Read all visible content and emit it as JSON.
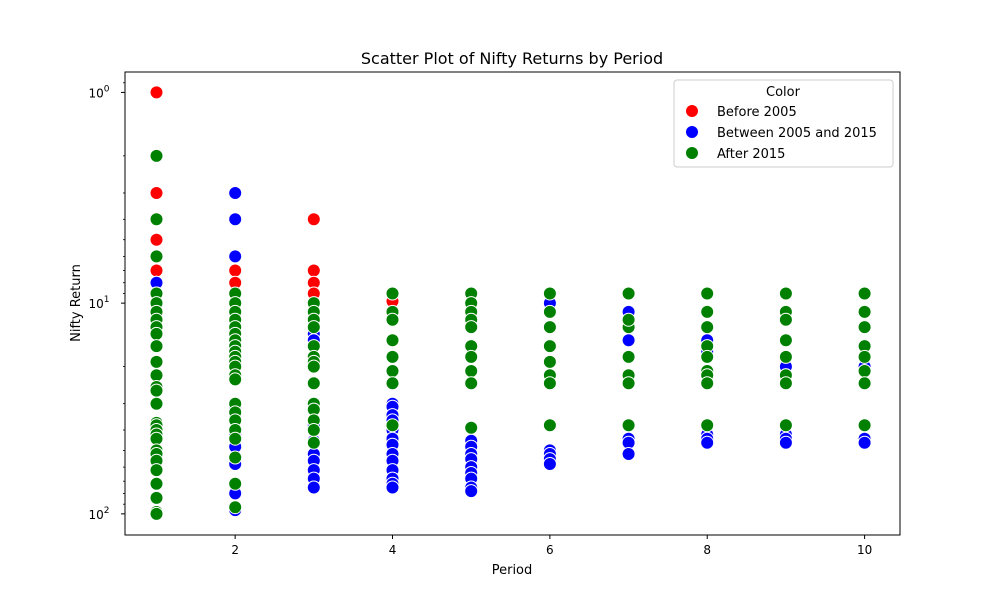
{
  "chart_data": {
    "type": "scatter",
    "title": "Scatter Plot of Nifty Returns by Period",
    "xlabel": "Period",
    "ylabel": "Nifty Return",
    "xlim": [
      0.6,
      10.45
    ],
    "ylim": [
      126,
      0.8
    ],
    "y_scale": "log",
    "y_inverted": true,
    "x_ticks": [
      2,
      4,
      6,
      8,
      10
    ],
    "y_ticks": [
      {
        "value": 1,
        "base": "10",
        "exp": "0"
      },
      {
        "value": 10,
        "base": "10",
        "exp": "1"
      },
      {
        "value": 100,
        "base": "10",
        "exp": "2"
      }
    ],
    "grid": false,
    "legend": {
      "title": "Color",
      "placement": "top-right"
    },
    "marker_edge_color": "#ffffff",
    "series": [
      {
        "name": "Before 2005",
        "color": "#ff0000",
        "points": [
          [
            1,
            1.0
          ],
          [
            1,
            3.0
          ],
          [
            1,
            5.0
          ],
          [
            1,
            7.0
          ],
          [
            1,
            8.0
          ],
          [
            2,
            7.0
          ],
          [
            2,
            8.0
          ],
          [
            3,
            4.0
          ],
          [
            3,
            7.0
          ],
          [
            3,
            8.0
          ],
          [
            3,
            9.0
          ],
          [
            4,
            9.8
          ]
        ]
      },
      {
        "name": "Between 2005 and 2015",
        "color": "#0000ff",
        "points": [
          [
            1,
            8.0
          ],
          [
            1,
            9.0
          ],
          [
            2,
            3.0
          ],
          [
            2,
            4.0
          ],
          [
            2,
            6.0
          ],
          [
            2,
            31
          ],
          [
            2,
            35
          ],
          [
            2,
            42
          ],
          [
            2,
            48
          ],
          [
            2,
            58
          ],
          [
            2,
            72
          ],
          [
            2,
            80
          ],
          [
            2,
            96
          ],
          [
            3,
            14
          ],
          [
            3,
            15
          ],
          [
            3,
            18
          ],
          [
            3,
            30
          ],
          [
            3,
            38
          ],
          [
            3,
            45
          ],
          [
            3,
            52
          ],
          [
            3,
            56
          ],
          [
            3,
            62
          ],
          [
            3,
            68
          ],
          [
            3,
            75
          ],
          [
            4,
            30
          ],
          [
            4,
            31
          ],
          [
            4,
            34
          ],
          [
            4,
            36
          ],
          [
            4,
            40
          ],
          [
            4,
            44
          ],
          [
            4,
            47
          ],
          [
            4,
            52
          ],
          [
            4,
            56
          ],
          [
            4,
            62
          ],
          [
            4,
            68
          ],
          [
            4,
            72
          ],
          [
            4,
            75
          ],
          [
            5,
            45
          ],
          [
            5,
            48
          ],
          [
            5,
            52
          ],
          [
            5,
            55
          ],
          [
            5,
            60
          ],
          [
            5,
            64
          ],
          [
            5,
            68
          ],
          [
            5,
            75
          ],
          [
            5,
            78
          ],
          [
            6,
            10
          ],
          [
            6,
            50
          ],
          [
            6,
            52
          ],
          [
            6,
            55
          ],
          [
            6,
            58
          ],
          [
            7,
            11
          ],
          [
            7,
            15
          ],
          [
            7,
            22
          ],
          [
            7,
            44
          ],
          [
            7,
            46
          ],
          [
            7,
            52
          ],
          [
            8,
            15
          ],
          [
            8,
            17
          ],
          [
            8,
            22
          ],
          [
            8,
            42
          ],
          [
            8,
            44
          ],
          [
            8,
            46
          ],
          [
            9,
            20
          ],
          [
            9,
            22
          ],
          [
            9,
            42
          ],
          [
            9,
            44
          ],
          [
            9,
            46
          ],
          [
            10,
            20
          ],
          [
            10,
            44
          ],
          [
            10,
            46
          ]
        ]
      },
      {
        "name": "After 2015",
        "color": "#008000",
        "points": [
          [
            1,
            2.0
          ],
          [
            1,
            4.0
          ],
          [
            1,
            6.0
          ],
          [
            1,
            9.0
          ],
          [
            1,
            10
          ],
          [
            1,
            11
          ],
          [
            1,
            12
          ],
          [
            1,
            13
          ],
          [
            1,
            14
          ],
          [
            1,
            16
          ],
          [
            1,
            19
          ],
          [
            1,
            22
          ],
          [
            1,
            25
          ],
          [
            1,
            26
          ],
          [
            1,
            30
          ],
          [
            1,
            37
          ],
          [
            1,
            38
          ],
          [
            1,
            40
          ],
          [
            1,
            42
          ],
          [
            1,
            44
          ],
          [
            1,
            50
          ],
          [
            1,
            52
          ],
          [
            1,
            56
          ],
          [
            1,
            62
          ],
          [
            1,
            72
          ],
          [
            1,
            84
          ],
          [
            1,
            98
          ],
          [
            1,
            100
          ],
          [
            2,
            9.0
          ],
          [
            2,
            10
          ],
          [
            2,
            11
          ],
          [
            2,
            12
          ],
          [
            2,
            13
          ],
          [
            2,
            14
          ],
          [
            2,
            15
          ],
          [
            2,
            16
          ],
          [
            2,
            17
          ],
          [
            2,
            18
          ],
          [
            2,
            19
          ],
          [
            2,
            20
          ],
          [
            2,
            22
          ],
          [
            2,
            23
          ],
          [
            2,
            30
          ],
          [
            2,
            33
          ],
          [
            2,
            36
          ],
          [
            2,
            40
          ],
          [
            2,
            44
          ],
          [
            2,
            54
          ],
          [
            2,
            72
          ],
          [
            2,
            93
          ],
          [
            3,
            10
          ],
          [
            3,
            11
          ],
          [
            3,
            12
          ],
          [
            3,
            13
          ],
          [
            3,
            16
          ],
          [
            3,
            18
          ],
          [
            3,
            19
          ],
          [
            3,
            20
          ],
          [
            3,
            24
          ],
          [
            3,
            30
          ],
          [
            3,
            32
          ],
          [
            3,
            36
          ],
          [
            3,
            40
          ],
          [
            3,
            46
          ],
          [
            4,
            9.0
          ],
          [
            4,
            11
          ],
          [
            4,
            12
          ],
          [
            4,
            15
          ],
          [
            4,
            18
          ],
          [
            4,
            21
          ],
          [
            4,
            24
          ],
          [
            4,
            38
          ],
          [
            5,
            9.0
          ],
          [
            5,
            10
          ],
          [
            5,
            11
          ],
          [
            5,
            12
          ],
          [
            5,
            13
          ],
          [
            5,
            16
          ],
          [
            5,
            18
          ],
          [
            5,
            21
          ],
          [
            5,
            24
          ],
          [
            5,
            39
          ],
          [
            6,
            9.0
          ],
          [
            6,
            11
          ],
          [
            6,
            13
          ],
          [
            6,
            16
          ],
          [
            6,
            19
          ],
          [
            6,
            22
          ],
          [
            6,
            24
          ],
          [
            6,
            38
          ],
          [
            7,
            9.0
          ],
          [
            7,
            13
          ],
          [
            7,
            12
          ],
          [
            7,
            18
          ],
          [
            7,
            22
          ],
          [
            7,
            24
          ],
          [
            7,
            38
          ],
          [
            8,
            9.0
          ],
          [
            8,
            11
          ],
          [
            8,
            13
          ],
          [
            8,
            16
          ],
          [
            8,
            18
          ],
          [
            8,
            21
          ],
          [
            8,
            22
          ],
          [
            8,
            24
          ],
          [
            8,
            38
          ],
          [
            9,
            9.0
          ],
          [
            9,
            11
          ],
          [
            9,
            12
          ],
          [
            9,
            15
          ],
          [
            9,
            18
          ],
          [
            9,
            22
          ],
          [
            9,
            24
          ],
          [
            9,
            38
          ],
          [
            10,
            9.0
          ],
          [
            10,
            11
          ],
          [
            10,
            13
          ],
          [
            10,
            16
          ],
          [
            10,
            18
          ],
          [
            10,
            21
          ],
          [
            10,
            24
          ],
          [
            10,
            38
          ]
        ]
      }
    ]
  }
}
